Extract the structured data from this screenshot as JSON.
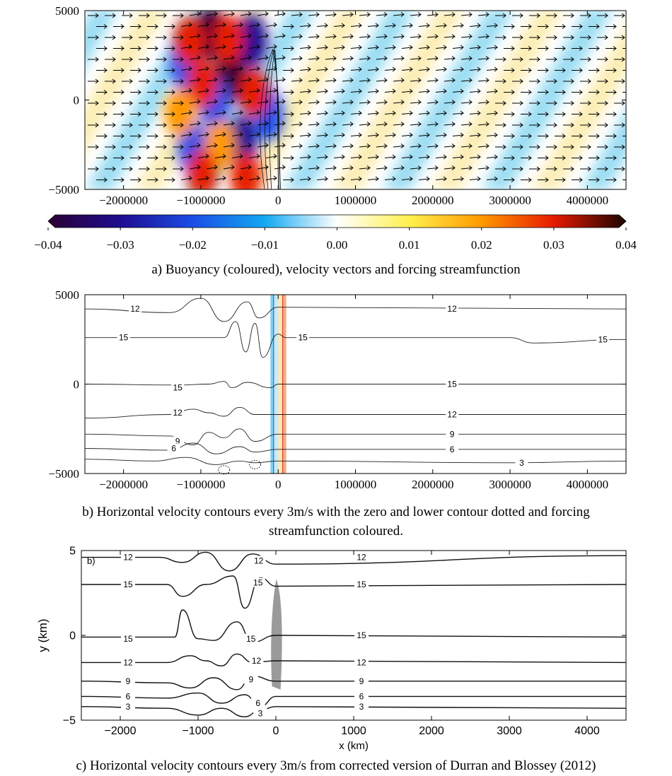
{
  "chart_data": [
    {
      "panel": "a",
      "type": "heatmap",
      "title": "",
      "caption": "a) Buoyancy (coloured), velocity vectors and forcing streamfunction",
      "xlabel": "",
      "ylabel": "",
      "xlim": [
        -2500000,
        4500000
      ],
      "ylim": [
        -5000,
        5000
      ],
      "x_ticks": [
        -2000000,
        -1000000,
        0,
        1000000,
        2000000,
        3000000,
        4000000
      ],
      "x_tick_labels": [
        "−2000000",
        "−1000000",
        "0",
        "1000000",
        "2000000",
        "3000000",
        "4000000"
      ],
      "y_ticks": [
        -5000,
        0,
        5000
      ],
      "y_tick_labels": [
        "−5000",
        "0",
        "5000"
      ],
      "colorbar": {
        "range": [
          -0.04,
          0.04
        ],
        "ticks": [
          -0.04,
          -0.03,
          -0.02,
          -0.01,
          0.0,
          0.01,
          0.02,
          0.03,
          0.04
        ],
        "tick_labels": [
          "−0.04",
          "−0.03",
          "−0.02",
          "−0.01",
          "0.00",
          "0.01",
          "0.02",
          "0.03",
          "0.04"
        ],
        "colors": [
          "#2b0033",
          "#1e0d8f",
          "#1a4de6",
          "#12a8f0",
          "#ffffff",
          "#fff04d",
          "#ff9900",
          "#e61a00",
          "#1a0500"
        ]
      },
      "field": {
        "warm_blobs": [
          [
            -1150000,
            3300,
            0.03
          ],
          [
            -640000,
            3400,
            0.03
          ],
          [
            -980000,
            900,
            0.025
          ],
          [
            -310000,
            400,
            0.028
          ],
          [
            -1270000,
            -700,
            0.02
          ],
          [
            -750000,
            -2500,
            0.02
          ],
          [
            -420000,
            -4300,
            0.03
          ],
          [
            -980000,
            -4100,
            0.025
          ]
        ],
        "cold_blobs": [
          [
            -870000,
            3700,
            -0.035
          ],
          [
            -340000,
            3300,
            -0.03
          ],
          [
            -1200000,
            2000,
            -0.025
          ],
          [
            -620000,
            1300,
            -0.035
          ],
          [
            -820000,
            -200,
            -0.02
          ],
          [
            -1100000,
            -2700,
            -0.025
          ],
          [
            -470000,
            -2400,
            -0.03
          ],
          [
            -130000,
            -800,
            -0.02
          ]
        ],
        "wave_band_colors": [
          "#7fd3ef",
          "#fbe9a0"
        ]
      },
      "vectors": {
        "direction": "eastward",
        "arrow_color": "#000000"
      }
    },
    {
      "panel": "b",
      "type": "line",
      "title": "",
      "caption_lines": [
        "b) Horizontal velocity contours every 3m/s with the zero and lower contour dotted and forcing",
        "streamfunction coloured."
      ],
      "xlabel": "",
      "ylabel": "",
      "xlim": [
        -2500000,
        4500000
      ],
      "ylim": [
        -5000,
        5000
      ],
      "x_ticks": [
        -2000000,
        -1000000,
        0,
        1000000,
        2000000,
        3000000,
        4000000
      ],
      "x_tick_labels": [
        "−2000000",
        "−1000000",
        "0",
        "1000000",
        "2000000",
        "3000000",
        "4000000"
      ],
      "y_ticks": [
        -5000,
        0,
        5000
      ],
      "y_tick_labels": [
        "−5000",
        "0",
        "5000"
      ],
      "forcing_band_x": [
        -100000,
        100000
      ],
      "series": [
        {
          "level": 12,
          "y_far": 4200,
          "label_positions": [
            [
              -1850000,
              4200
            ],
            [
              2250000,
              4200
            ]
          ],
          "x": [
            -2500000,
            -1400000,
            -1000000,
            -700000,
            -400000,
            -250000,
            0,
            4500000
          ],
          "y": [
            4200,
            4000,
            4800,
            3500,
            4600,
            3700,
            4300,
            4200
          ]
        },
        {
          "level": 15,
          "y_far": 2600,
          "label_positions": [
            [
              -2000000,
              2600
            ],
            [
              320000,
              2600
            ],
            [
              4200000,
              2500
            ]
          ],
          "x": [
            -2500000,
            -700000,
            -550000,
            -420000,
            -300000,
            -200000,
            0,
            100000,
            3000000,
            3300000,
            4500000
          ],
          "y": [
            2600,
            2600,
            3500,
            1800,
            3400,
            1500,
            2800,
            2600,
            2600,
            2300,
            2500
          ]
        },
        {
          "level": 15,
          "y_far": 0,
          "label_positions": [
            [
              -1300000,
              -200
            ],
            [
              2250000,
              0
            ]
          ],
          "x": [
            -2500000,
            -1300000,
            -900000,
            -700000,
            -600000,
            -400000,
            -100000,
            0,
            4500000
          ],
          "y": [
            0,
            -50,
            0,
            150,
            -200,
            100,
            -200,
            0,
            0
          ]
        },
        {
          "level": 12,
          "y_far": -1700,
          "label_positions": [
            [
              -1300000,
              -1600
            ],
            [
              2250000,
              -1700
            ]
          ],
          "x": [
            -2500000,
            -1400000,
            -1100000,
            -900000,
            -700000,
            -500000,
            -300000,
            0,
            4500000
          ],
          "y": [
            -1900,
            -1700,
            -1400,
            -1600,
            -1800,
            -1300,
            -1700,
            -1700,
            -1700
          ]
        },
        {
          "level": 9,
          "y_far": -2800,
          "label_positions": [
            [
              -1300000,
              -3200
            ],
            [
              2250000,
              -2800
            ]
          ],
          "x": [
            -2500000,
            -1400000,
            -1100000,
            -900000,
            -700000,
            -500000,
            -300000,
            0,
            4500000
          ],
          "y": [
            -2800,
            -2900,
            -3400,
            -2700,
            -3000,
            -2500,
            -3200,
            -2800,
            -2800
          ]
        },
        {
          "level": 6,
          "y_far": -3650,
          "label_positions": [
            [
              -1350000,
              -3600
            ],
            [
              2250000,
              -3650
            ]
          ],
          "x": [
            -2500000,
            -1400000,
            -1100000,
            -800000,
            -500000,
            -300000,
            0,
            4500000
          ],
          "y": [
            -3600,
            -3700,
            -3300,
            -3900,
            -3500,
            -3800,
            -3650,
            -3650
          ]
        },
        {
          "level": 3,
          "y_far": -4300,
          "label_positions": [
            [
              3150000,
              -4400
            ]
          ],
          "x": [
            -2500000,
            -1600000,
            -1200000,
            -800000,
            -500000,
            -300000,
            0,
            3000000,
            4500000
          ],
          "y": [
            -4200,
            -4300,
            -4100,
            -4500,
            -4300,
            -4400,
            -4300,
            -4400,
            -4300
          ]
        }
      ],
      "dotted_contours": [
        {
          "x": -700000,
          "y": -4800
        },
        {
          "x": -300000,
          "y": -4500
        }
      ]
    },
    {
      "panel": "c",
      "type": "line",
      "title": "",
      "panel_label": "b)",
      "caption": "c) Horizontal velocity contours every 3m/s from corrected version of Durran and Blossey (2012)",
      "xlabel": "x (km)",
      "ylabel": "y (km)",
      "xlim": [
        -2500,
        4500
      ],
      "ylim": [
        -5,
        5
      ],
      "x_ticks": [
        -2000,
        -1000,
        0,
        1000,
        2000,
        3000,
        4000
      ],
      "x_tick_labels": [
        "−2000",
        "−1000",
        "0",
        "1000",
        "2000",
        "3000",
        "4000"
      ],
      "y_ticks": [
        -5,
        0,
        5
      ],
      "y_tick_labels": [
        "−5",
        "0",
        "5"
      ],
      "forcing_band_x": [
        -50,
        60
      ],
      "series": [
        {
          "level": 12,
          "label_positions": [
            [
              -1900,
              4.6
            ],
            [
              -220,
              4.4
            ],
            [
              1100,
              4.6
            ]
          ],
          "x": [
            -2500,
            -1500,
            -1200,
            -900,
            -600,
            -300,
            0,
            4500
          ],
          "y": [
            4.6,
            4.6,
            4.3,
            4.9,
            3.8,
            4.8,
            4.2,
            4.7
          ]
        },
        {
          "level": 15,
          "label_positions": [
            [
              -1900,
              3.0
            ],
            [
              -230,
              3.1
            ],
            [
              1100,
              3.0
            ]
          ],
          "x": [
            -2500,
            -1400,
            -1200,
            -900,
            -550,
            -400,
            -200,
            0,
            4500
          ],
          "y": [
            3.0,
            3.0,
            2.3,
            3.0,
            3.5,
            1.6,
            3.4,
            2.9,
            3.0
          ]
        },
        {
          "level": 15,
          "label_positions": [
            [
              -1900,
              -0.2
            ],
            [
              -320,
              -0.2
            ],
            [
              1100,
              0.0
            ]
          ],
          "x": [
            -2500,
            -1300,
            -1200,
            -1000,
            -800,
            -500,
            -300,
            0,
            4500
          ],
          "y": [
            -0.1,
            -0.1,
            1.5,
            -0.2,
            -0.3,
            0.8,
            -0.4,
            0.0,
            -0.1
          ]
        },
        {
          "level": 12,
          "label_positions": [
            [
              -1900,
              -1.6
            ],
            [
              -250,
              -1.5
            ],
            [
              1100,
              -1.6
            ]
          ],
          "x": [
            -2500,
            -1400,
            -1100,
            -900,
            -700,
            -500,
            -300,
            0,
            4500
          ],
          "y": [
            -1.6,
            -1.6,
            -1.2,
            -1.5,
            -1.8,
            -1.1,
            -1.6,
            -1.5,
            -1.6
          ]
        },
        {
          "level": 9,
          "label_positions": [
            [
              -1900,
              -2.7
            ],
            [
              -320,
              -2.6
            ],
            [
              1100,
              -2.7
            ]
          ],
          "x": [
            -2500,
            -1400,
            -1100,
            -800,
            -500,
            -300,
            0,
            4500
          ],
          "y": [
            -2.7,
            -2.8,
            -3.1,
            -2.5,
            -3.2,
            -2.4,
            -2.7,
            -2.7
          ]
        },
        {
          "level": 6,
          "label_positions": [
            [
              -1900,
              -3.6
            ],
            [
              -230,
              -4.0
            ],
            [
              1100,
              -3.6
            ]
          ],
          "x": [
            -2500,
            -1400,
            -1000,
            -700,
            -400,
            -200,
            0,
            4500
          ],
          "y": [
            -3.6,
            -3.7,
            -3.4,
            -4.0,
            -3.5,
            -4.2,
            -3.6,
            -3.6
          ]
        },
        {
          "level": 3,
          "label_positions": [
            [
              -1900,
              -4.2
            ],
            [
              -200,
              -4.6
            ],
            [
              1100,
              -4.2
            ]
          ],
          "x": [
            -2500,
            -1400,
            -1000,
            -700,
            -400,
            -200,
            0,
            4500
          ],
          "y": [
            -4.2,
            -4.3,
            -4.7,
            -4.3,
            -4.8,
            -4.4,
            -4.2,
            -4.3
          ]
        }
      ]
    }
  ]
}
